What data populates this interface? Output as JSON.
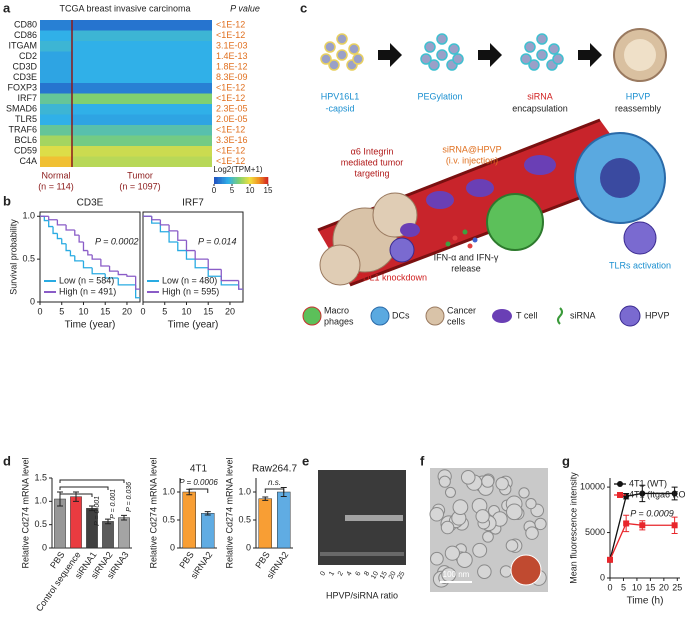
{
  "panel_labels": [
    "a",
    "b",
    "c",
    "d",
    "e",
    "f",
    "g"
  ],
  "heatmap": {
    "title": "TCGA breast invasive carcinoma",
    "p_header": "P value",
    "genes": [
      "CD80",
      "CD86",
      "ITGAM",
      "CD2",
      "CD3D",
      "CD3E",
      "FOXP3",
      "IRF7",
      "SMAD6",
      "TLR5",
      "TRAF6",
      "BCL6",
      "CD59",
      "C4A"
    ],
    "p_values": [
      "<1E-12",
      "<1E-12",
      "3.1E-03",
      "1.4E-13",
      "1.8E-12",
      "8.3E-09",
      "<1E-12",
      "<1E-12",
      "2.3E-05",
      "2.0E-05",
      "<1E-12",
      "3.3E-16",
      "<1E-12",
      "<1E-12"
    ],
    "normal_values": [
      2,
      4,
      4.5,
      3.5,
      3.5,
      3.5,
      1.5,
      6,
      4.5,
      4,
      6,
      8,
      9.5,
      11
    ],
    "tumor_values": [
      1.5,
      4.5,
      4,
      4,
      4,
      4,
      2,
      7,
      4,
      3.5,
      5.5,
      6.5,
      9,
      8.5
    ],
    "normal_label": "Normal",
    "normal_n": "(n = 114)",
    "tumor_label": "Tumor",
    "tumor_n": "(n = 1097)",
    "colorbar_label": "Log2(TPM+1)",
    "colorbar_lim": [
      0,
      15
    ],
    "colorbar_ticks": [
      0,
      5,
      10,
      15
    ]
  },
  "diagram": {
    "step1": "HPV16L1",
    "step1b": "-capsid",
    "step2": "PEGylation",
    "step3": "siRNA",
    "step3b": "encapsulation",
    "step4": "HPVP",
    "step4b": "reassembly",
    "targeting": [
      "α6 Integrin",
      "mediated tumor",
      "targeting"
    ],
    "injection": [
      "siRNA@HPVP",
      "(i.v. injection)"
    ],
    "ifn": [
      "IFN-α and IFN-γ",
      "release"
    ],
    "knockdown": "PDL1 knockdown",
    "tlr": "TLRs activation",
    "legend": {
      "macro": [
        "Macro",
        "phages"
      ],
      "dcs": "DCs",
      "cancer": [
        "Cancer",
        "cells"
      ],
      "tcell": "T cell",
      "sirna": "siRNA",
      "hpvp": "HPVP"
    }
  },
  "gel": {
    "x_label": "HPVP/siRNA ratio",
    "lanes": [
      "0",
      "1",
      "2",
      "4",
      "6",
      "8",
      "10",
      "15",
      "20",
      "25"
    ]
  },
  "micrograph": {
    "scale_bar": "100 nm"
  },
  "chart_data": [
    {
      "type": "survival",
      "title": "CD3E",
      "ylabel": "Survival probability",
      "xlabel": "Time (year)",
      "xlim": [
        0,
        23
      ],
      "ylim": [
        0,
        1.05
      ],
      "xticks": [
        0,
        5,
        10,
        15,
        20
      ],
      "yticks": [
        0,
        0.5,
        {
          "value": 1,
          "label": "1.0"
        }
      ],
      "annotation": "P = 0.0002",
      "legend": "lower left",
      "series": [
        {
          "name": "Low (n = 584)",
          "color": "#29abe2",
          "x": [
            0,
            1,
            2,
            3,
            4,
            5,
            6,
            7,
            8,
            10,
            12,
            15,
            18,
            22
          ],
          "values": [
            1,
            0.95,
            0.88,
            0.8,
            0.74,
            0.68,
            0.6,
            0.54,
            0.48,
            0.4,
            0.33,
            0.28,
            0.2,
            0.05
          ]
        },
        {
          "name": "High (n = 491)",
          "color": "#8a5cc7",
          "x": [
            0,
            2,
            4,
            6,
            8,
            9,
            10,
            11,
            12,
            14,
            16,
            18,
            20,
            22
          ],
          "values": [
            1,
            0.96,
            0.9,
            0.84,
            0.78,
            0.7,
            0.6,
            0.55,
            0.5,
            0.42,
            0.36,
            0.32,
            0.3,
            0.15
          ]
        }
      ]
    },
    {
      "type": "survival",
      "title": "IRF7",
      "xlabel": "Time (year)",
      "xlim": [
        0,
        23
      ],
      "ylim": [
        0,
        1.05
      ],
      "xticks": [
        0,
        5,
        10,
        15,
        20
      ],
      "annotation": "P = 0.014",
      "legend": "lower left",
      "series": [
        {
          "name": "Low (n = 480)",
          "color": "#29abe2",
          "x": [
            0,
            2,
            4,
            6,
            8,
            10,
            12,
            15,
            18,
            22
          ],
          "values": [
            1,
            0.92,
            0.82,
            0.7,
            0.6,
            0.5,
            0.4,
            0.3,
            0.2,
            0.15
          ]
        },
        {
          "name": "High (n = 595)",
          "color": "#8a5cc7",
          "x": [
            0,
            2,
            4,
            6,
            8,
            10,
            12,
            15,
            18,
            22
          ],
          "values": [
            1,
            0.96,
            0.9,
            0.83,
            0.72,
            0.6,
            0.5,
            0.38,
            0.25,
            0.15
          ]
        }
      ]
    },
    {
      "type": "bar",
      "ylabel": "Relative Cd274 mRNA level",
      "categories": [
        "PBS",
        "Control sequence",
        "siRNA1",
        "siRNA2",
        "siRNA3"
      ],
      "values": [
        1.05,
        1.1,
        0.85,
        0.57,
        0.65
      ],
      "errors": [
        0.15,
        0.1,
        0.05,
        0.05,
        0.05
      ],
      "colors": [
        "#8c8c8c",
        "#e8262b",
        "#2b2b2b",
        "#4a4a4a",
        "#9a9a9a"
      ],
      "ylim": [
        0,
        1.5
      ],
      "yticks": [
        0,
        0.5,
        {
          "value": 1,
          "label": "1.0"
        },
        1.5
      ],
      "annotations": [
        "P = 0.001",
        "P = 0.001",
        "P = 0.036"
      ]
    },
    {
      "type": "bar",
      "title": "4T1",
      "ylabel": "Relative Cd274 mRNA level",
      "categories": [
        "PBS",
        "siRNA2"
      ],
      "values": [
        1.0,
        0.62
      ],
      "errors": [
        0.05,
        0.03
      ],
      "colors": [
        "#f7931e",
        "#4fa3e0"
      ],
      "ylim": [
        0,
        1.25
      ],
      "yticks": [
        0,
        0.5,
        {
          "value": 1,
          "label": "1.0"
        }
      ],
      "annotations": [
        "P = 0.0006"
      ]
    },
    {
      "type": "bar",
      "title": "Raw264.7",
      "ylabel": "Relative Cd274 mRNA level",
      "categories": [
        "PBS",
        "siRNA2"
      ],
      "values": [
        0.88,
        1.0
      ],
      "errors": [
        0.03,
        0.08
      ],
      "colors": [
        "#f7931e",
        "#4fa3e0"
      ],
      "ylim": [
        0,
        1.25
      ],
      "yticks": [
        0,
        0.5,
        {
          "value": 1,
          "label": "1.0"
        }
      ],
      "annotations": [
        "n.s."
      ]
    },
    {
      "type": "line",
      "ylabel": "Mean fluorescence intensity",
      "xlabel": "Time (h)",
      "xlim": [
        0,
        26
      ],
      "ylim": [
        0,
        11000
      ],
      "xticks": [
        0,
        5,
        10,
        15,
        20,
        25
      ],
      "yticks": [
        0,
        5000,
        10000
      ],
      "annotation": "P = 0.0009",
      "legend": "upper left",
      "series": [
        {
          "name": "4T1 (WT)",
          "color": "#111111",
          "marker": "circle",
          "x": [
            0,
            6,
            12,
            24
          ],
          "values": [
            2000,
            9000,
            9300,
            9300
          ],
          "errors": [
            0,
            300,
            900,
            700
          ]
        },
        {
          "name": "4T1 (Itga6 KO)",
          "color": "#e8262b",
          "marker": "square",
          "x": [
            0,
            6,
            12,
            24
          ],
          "values": [
            2000,
            6000,
            5800,
            5800
          ],
          "errors": [
            0,
            900,
            500,
            900
          ]
        }
      ]
    }
  ]
}
